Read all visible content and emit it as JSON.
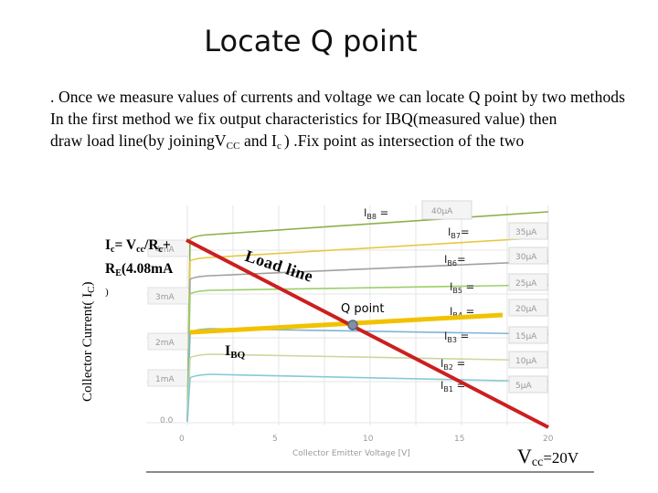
{
  "title": "Locate Q point",
  "intro": {
    "line1_pre": ". Once we measure values of currents and voltage we can locate Q point by two methods",
    "line2": "In the first method we fix output characteristics for IBQ(measured value) then",
    "line3_pre": "draw load line(by  joining",
    "line3_vcc": "V",
    "line3_vcc_sub": "CC",
    "line3_and": " and  I",
    "line3_ic_sub": "c ",
    "line3_post": ") .Fix point as intersection of the two"
  },
  "diagram": {
    "y_axis_label": "Collector Current( I",
    "y_axis_label_sub": "C",
    "y_axis_label_end": ")",
    "ic_formula": {
      "line1_pre": "I",
      "line1_sub1": "c",
      "line1_mid": "= V",
      "line1_sub2": "cc",
      "line1_mid2": "/R",
      "line1_sub3": "c",
      "line1_end": "+",
      "line2_pre": "R",
      "line2_sub": "E",
      "line2_end": "(4.08mA",
      "line3": ")"
    },
    "load_line_label": "Load line",
    "q_point_label": "Q point",
    "ibq_label": "I",
    "ibq_sub": "BQ",
    "vcc_label": "V",
    "vcc_sub": "cc",
    "vcc_value": "=20V",
    "ib_labels": [
      {
        "name": "I",
        "sub": "B8",
        "suffix": " ="
      },
      {
        "name": "I",
        "sub": "B7",
        "suffix": "="
      },
      {
        "name": "I",
        "sub": "B6",
        "suffix": "="
      },
      {
        "name": "I",
        "sub": "B5",
        "suffix": " ="
      },
      {
        "name": "I",
        "sub": "B4",
        "suffix": " ="
      },
      {
        "name": "I",
        "sub": "B3",
        "suffix": " ="
      },
      {
        "name": "I",
        "sub": "B2",
        "suffix": " ="
      },
      {
        "name": "I",
        "sub": "B1",
        "suffix": " ="
      }
    ],
    "grey_curve_labels": [
      "40μA",
      "35μA",
      "30μA",
      "25μA",
      "20μA",
      "15μA",
      "10μA",
      "5μA"
    ],
    "grey_ic_labels": [
      "4mA",
      "3mA",
      "2mA",
      "1mA",
      "0.0"
    ],
    "grey_vce_ticks": [
      "0",
      "5",
      "10",
      "15",
      "20"
    ],
    "grey_x_axis_label": "Collector Emitter Voltage [V]",
    "colors": {
      "load_line": "#cc1f1f",
      "ibq_line": "#f2c200",
      "q_point": "#7f8fa6",
      "curves": [
        "#8db04a",
        "#e8c840",
        "#a0a0a0",
        "#9bcf6a",
        "#e6c35c",
        "#7db5d8",
        "#c8d8a0",
        "#86c9d6"
      ]
    }
  }
}
